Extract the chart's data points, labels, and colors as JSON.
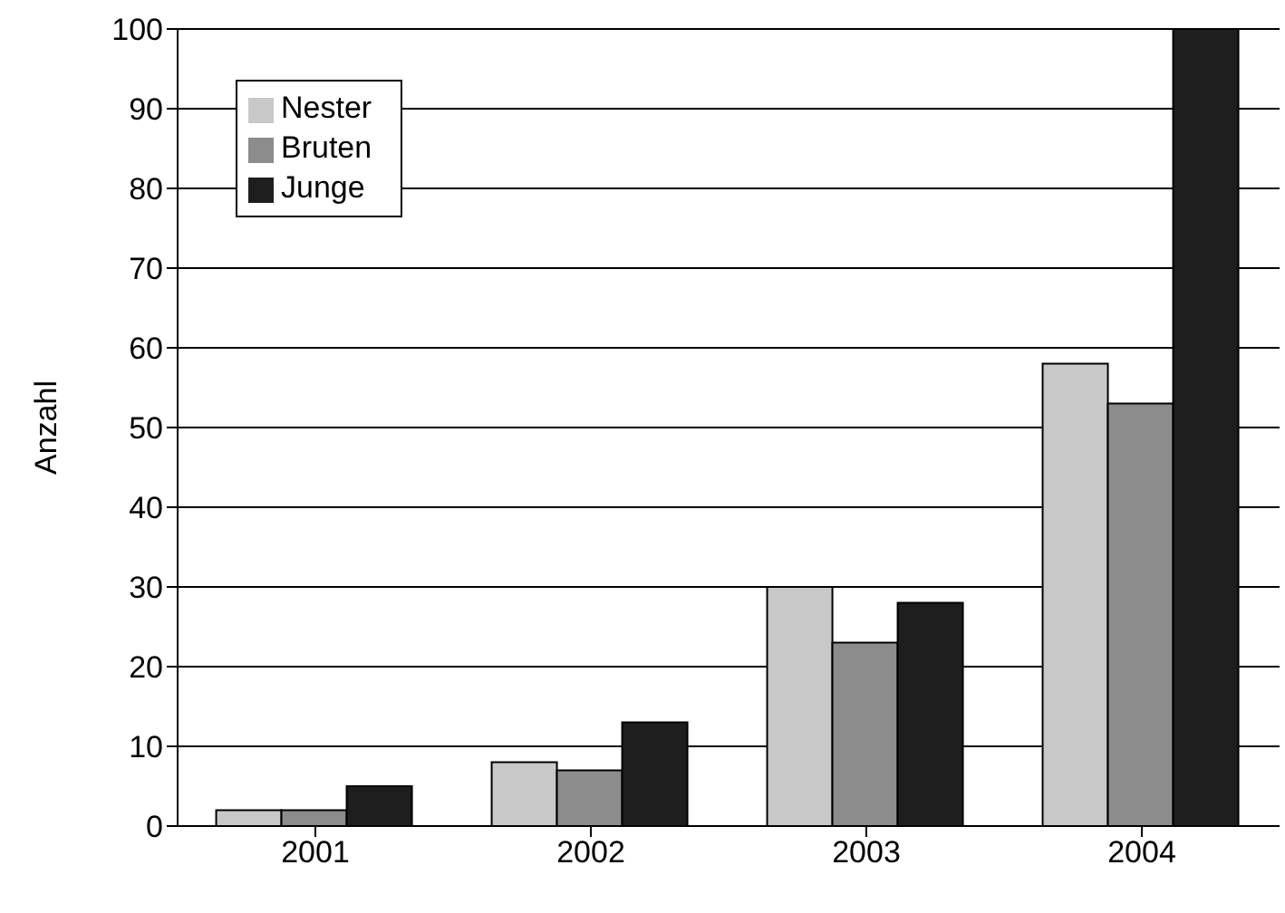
{
  "chart_data": {
    "type": "bar",
    "ylabel": "Anzahl",
    "categories": [
      "2001",
      "2002",
      "2003",
      "2004"
    ],
    "series": [
      {
        "name": "Nester",
        "color": "#c8c8c8",
        "values": [
          2,
          8,
          30,
          58
        ]
      },
      {
        "name": "Bruten",
        "color": "#8c8c8c",
        "values": [
          2,
          7,
          23,
          53
        ]
      },
      {
        "name": "Junge",
        "color": "#1e1e1e",
        "values": [
          5,
          13,
          28,
          100
        ]
      }
    ],
    "ylim": [
      0,
      100
    ],
    "yticks": [
      0,
      10,
      20,
      30,
      40,
      50,
      60,
      70,
      80,
      90,
      100
    ],
    "grid": "y",
    "legend": "top left"
  }
}
